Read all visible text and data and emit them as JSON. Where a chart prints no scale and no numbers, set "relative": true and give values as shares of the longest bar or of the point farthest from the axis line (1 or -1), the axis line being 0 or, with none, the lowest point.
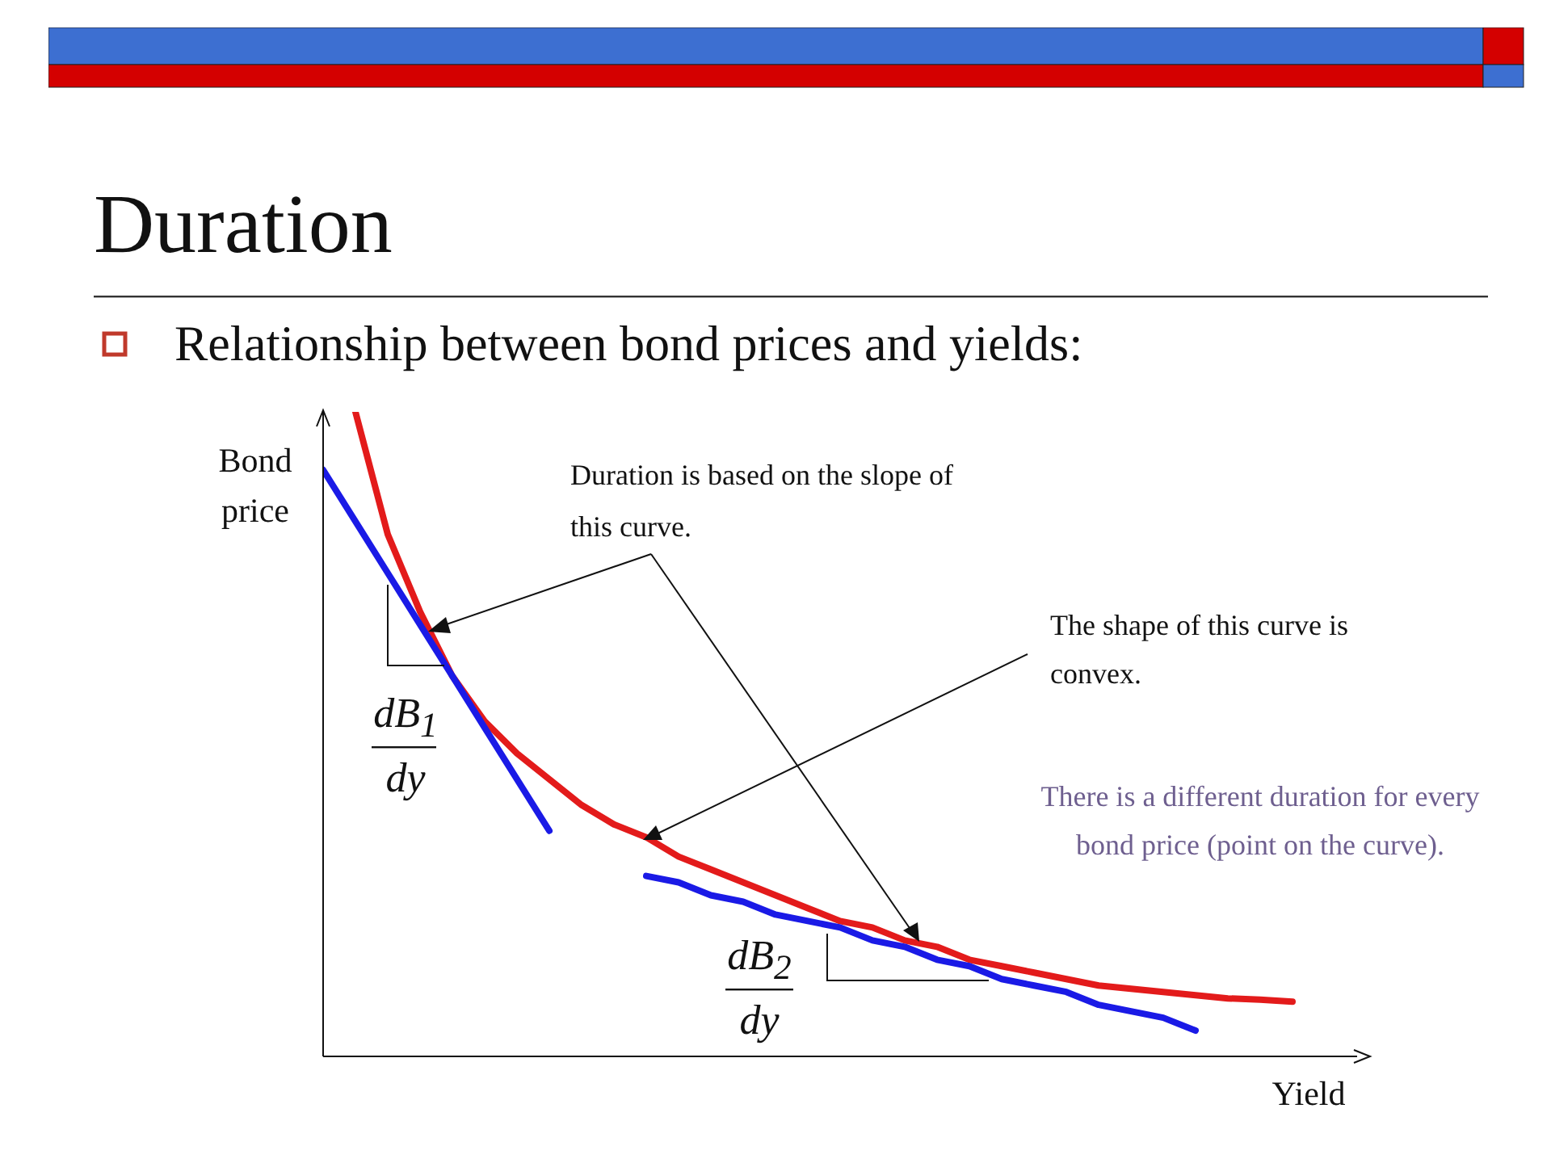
{
  "chart_data": {
    "type": "line",
    "title": "Duration",
    "subtitle": "Relationship between bond prices and yields:",
    "xlabel": "Yield",
    "ylabel": "Bond price",
    "relative": true,
    "categories": [
      null,
      null,
      null,
      null,
      null,
      null,
      null,
      null,
      null,
      null,
      null,
      null,
      null,
      null,
      null,
      null,
      null,
      null,
      null,
      null,
      null,
      null,
      null,
      null,
      null,
      null,
      null,
      null,
      null,
      null,
      null,
      null,
      null
    ],
    "series": [
      {
        "color": "#e31b1b",
        "values": [
          null,
          1.0,
          0.81,
          0.69,
          0.59,
          0.52,
          0.47,
          0.43,
          0.39,
          0.36,
          0.34,
          0.31,
          0.29,
          0.27,
          0.25,
          0.23,
          0.21,
          0.2,
          0.18,
          0.17,
          0.15,
          0.14,
          0.13,
          0.12,
          0.11,
          0.105,
          0.1,
          0.095,
          0.09,
          0.088,
          0.085,
          null,
          null
        ]
      },
      {
        "color": "#1a1ae6",
        "values": [
          0.91,
          0.83,
          0.75,
          0.67,
          0.59,
          0.51,
          0.43,
          0.35,
          null,
          null,
          null,
          null,
          null,
          null,
          null,
          null,
          null,
          null,
          null,
          null,
          null,
          null,
          null,
          null,
          null,
          null,
          null,
          null,
          null,
          null,
          null,
          null,
          null
        ]
      },
      {
        "color": "#1a1ae6",
        "values": [
          null,
          null,
          null,
          null,
          null,
          null,
          null,
          null,
          null,
          null,
          0.28,
          0.27,
          0.25,
          0.24,
          0.22,
          0.21,
          0.2,
          0.18,
          0.17,
          0.15,
          0.14,
          0.12,
          0.11,
          0.1,
          0.08,
          0.07,
          0.06,
          0.04,
          null,
          null,
          null,
          null,
          null
        ]
      }
    ],
    "annotations": [
      "Duration is based on the slope of this curve.",
      "The shape of this curve is convex.",
      "There is a different duration for every bond price (point on the curve).",
      "dB$_{1}$",
      "dy",
      "dB$_{2}$",
      "dy"
    ]
  }
}
